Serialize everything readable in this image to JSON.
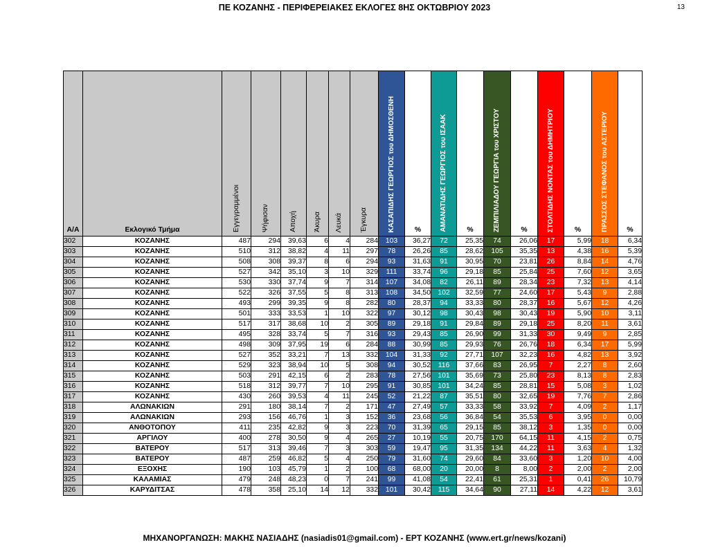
{
  "header": {
    "title": "ΠΕ ΚΟΖΑΝΗΣ - ΠΕΡΙΦΕΡΕΙΑΚΕΣ ΕΚΛΟΓΕΣ 8ΗΣ ΟΚΤΩΒΡΙΟΥ 2023",
    "page_number": "13"
  },
  "table": {
    "headers": {
      "aa": "Α/Α",
      "tmima": "Εκλογικό Τμήμα",
      "eggegrammenoi": "Εγγεγραμμένοι",
      "psifisan": "Ψήφισαν",
      "apoxi": "Αποχή",
      "akyra": "Άκυρα",
      "leyka": "Λευκά",
      "egkyra": "Έγκυρα",
      "c1": "ΚΑΣΑΠΙΔΗΣ ΓΕΩΡΓΙΟΣ του ΔΗΜΟΣΘΕΝΗ",
      "c2": "ΑΜΑΝΑΤΙΔΗΣ ΓΕΩΡΓΙΟΣ του ΙΣΑΑΚ",
      "c3": "ΖΕΜΠΙΛΙΑΔΟΥ ΓΕΩΡΓΙΑ του ΧΡΙΣΤΟΥ",
      "c4": "ΣΤΟΛΤΙΔΗΣ ΝΟΝΤΑΣ του ΔΗΜΗΤΡΙΟΥ",
      "c5": "ΠΡΑΣΣΟΣ ΣΤΕΦΑΝΟΣ του ΑΣΤΕΡΙΟΥ",
      "pct": "%"
    },
    "colors": {
      "gray": "#c9c9c9",
      "c1": "#2f5597",
      "c2": "#0e9a95",
      "c3": "#375623",
      "c4": "#ff0000",
      "c5": "#ff6a00"
    },
    "rows": [
      [
        "302",
        "ΚΟΖΑΝΗΣ",
        "487",
        "294",
        "39,63",
        "6",
        "4",
        "284",
        "103",
        "36,27",
        "72",
        "25,35",
        "74",
        "26,06",
        "17",
        "5,99",
        "18",
        "6,34"
      ],
      [
        "303",
        "ΚΟΖΑΝΗΣ",
        "510",
        "312",
        "38,82",
        "4",
        "11",
        "297",
        "78",
        "26,26",
        "85",
        "28,62",
        "105",
        "35,35",
        "13",
        "4,38",
        "16",
        "5,39"
      ],
      [
        "304",
        "ΚΟΖΑΝΗΣ",
        "508",
        "308",
        "39,37",
        "8",
        "6",
        "294",
        "93",
        "31,63",
        "91",
        "30,95",
        "70",
        "23,81",
        "26",
        "8,84",
        "14",
        "4,76"
      ],
      [
        "305",
        "ΚΟΖΑΝΗΣ",
        "527",
        "342",
        "35,10",
        "3",
        "10",
        "329",
        "111",
        "33,74",
        "96",
        "29,18",
        "85",
        "25,84",
        "25",
        "7,60",
        "12",
        "3,65"
      ],
      [
        "306",
        "ΚΟΖΑΝΗΣ",
        "530",
        "330",
        "37,74",
        "9",
        "7",
        "314",
        "107",
        "34,08",
        "82",
        "26,11",
        "89",
        "28,34",
        "23",
        "7,32",
        "13",
        "4,14"
      ],
      [
        "307",
        "ΚΟΖΑΝΗΣ",
        "522",
        "326",
        "37,55",
        "5",
        "8",
        "313",
        "108",
        "34,50",
        "102",
        "32,59",
        "77",
        "24,60",
        "17",
        "5,43",
        "9",
        "2,88"
      ],
      [
        "308",
        "ΚΟΖΑΝΗΣ",
        "493",
        "299",
        "39,35",
        "9",
        "8",
        "282",
        "80",
        "28,37",
        "94",
        "33,33",
        "80",
        "28,37",
        "16",
        "5,67",
        "12",
        "4,26"
      ],
      [
        "309",
        "ΚΟΖΑΝΗΣ",
        "501",
        "333",
        "33,53",
        "1",
        "10",
        "322",
        "97",
        "30,12",
        "98",
        "30,43",
        "98",
        "30,43",
        "19",
        "5,90",
        "10",
        "3,11"
      ],
      [
        "310",
        "ΚΟΖΑΝΗΣ",
        "517",
        "317",
        "38,68",
        "10",
        "2",
        "305",
        "89",
        "29,18",
        "91",
        "29,84",
        "89",
        "29,18",
        "25",
        "8,20",
        "11",
        "3,61"
      ],
      [
        "311",
        "ΚΟΖΑΝΗΣ",
        "495",
        "328",
        "33,74",
        "5",
        "7",
        "316",
        "93",
        "29,43",
        "85",
        "26,90",
        "99",
        "31,33",
        "30",
        "9,49",
        "9",
        "2,85"
      ],
      [
        "312",
        "ΚΟΖΑΝΗΣ",
        "498",
        "309",
        "37,95",
        "19",
        "6",
        "284",
        "88",
        "30,99",
        "85",
        "29,93",
        "76",
        "26,76",
        "18",
        "6,34",
        "17",
        "5,99"
      ],
      [
        "313",
        "ΚΟΖΑΝΗΣ",
        "527",
        "352",
        "33,21",
        "7",
        "13",
        "332",
        "104",
        "31,33",
        "92",
        "27,71",
        "107",
        "32,23",
        "16",
        "4,82",
        "13",
        "3,92"
      ],
      [
        "314",
        "ΚΟΖΑΝΗΣ",
        "529",
        "323",
        "38,94",
        "10",
        "5",
        "308",
        "94",
        "30,52",
        "116",
        "37,66",
        "83",
        "26,95",
        "7",
        "2,27",
        "8",
        "2,60"
      ],
      [
        "315",
        "ΚΟΖΑΝΗΣ",
        "503",
        "291",
        "42,15",
        "6",
        "2",
        "283",
        "78",
        "27,56",
        "101",
        "35,69",
        "73",
        "25,80",
        "23",
        "8,13",
        "8",
        "2,83"
      ],
      [
        "316",
        "ΚΟΖΑΝΗΣ",
        "518",
        "312",
        "39,77",
        "7",
        "10",
        "295",
        "91",
        "30,85",
        "101",
        "34,24",
        "85",
        "28,81",
        "15",
        "5,08",
        "3",
        "1,02"
      ],
      [
        "317",
        "ΚΟΖΑΝΗΣ",
        "430",
        "260",
        "39,53",
        "4",
        "11",
        "245",
        "52",
        "21,22",
        "87",
        "35,51",
        "80",
        "32,65",
        "19",
        "7,76",
        "7",
        "2,86"
      ],
      [
        "318",
        "ΑΛΩΝΑΚΙΩΝ",
        "291",
        "180",
        "38,14",
        "7",
        "2",
        "171",
        "47",
        "27,49",
        "57",
        "33,33",
        "58",
        "33,92",
        "7",
        "4,09",
        "2",
        "1,17"
      ],
      [
        "319",
        "ΑΛΩΝΑΚΙΩΝ",
        "293",
        "156",
        "46,76",
        "1",
        "3",
        "152",
        "36",
        "23,68",
        "56",
        "36,84",
        "54",
        "35,53",
        "6",
        "3,95",
        "0",
        "0,00"
      ],
      [
        "320",
        "ΑΝΘΟΤΟΠΟΥ",
        "411",
        "235",
        "42,82",
        "9",
        "3",
        "223",
        "70",
        "31,39",
        "65",
        "29,15",
        "85",
        "38,12",
        "3",
        "1,35",
        "0",
        "0,00"
      ],
      [
        "321",
        "ΑΡΓΙΛΟΥ",
        "400",
        "278",
        "30,50",
        "9",
        "4",
        "265",
        "27",
        "10,19",
        "55",
        "20,75",
        "170",
        "64,15",
        "11",
        "4,15",
        "2",
        "0,75"
      ],
      [
        "322",
        "ΒΑΤΕΡΟΥ",
        "517",
        "313",
        "39,46",
        "7",
        "3",
        "303",
        "59",
        "19,47",
        "95",
        "31,35",
        "134",
        "44,22",
        "11",
        "3,63",
        "4",
        "1,32"
      ],
      [
        "323",
        "ΒΑΤΕΡΟΥ",
        "487",
        "259",
        "46,82",
        "5",
        "4",
        "250",
        "79",
        "31,60",
        "74",
        "29,60",
        "84",
        "33,60",
        "3",
        "1,20",
        "10",
        "4,00"
      ],
      [
        "324",
        "ΕΞΟΧΗΣ",
        "190",
        "103",
        "45,79",
        "1",
        "2",
        "100",
        "68",
        "68,00",
        "20",
        "20,00",
        "8",
        "8,00",
        "2",
        "2,00",
        "2",
        "2,00"
      ],
      [
        "325",
        "ΚΑΛΑΜΙΑΣ",
        "479",
        "248",
        "48,23",
        "0",
        "7",
        "241",
        "99",
        "41,08",
        "54",
        "22,41",
        "61",
        "25,31",
        "1",
        "0,41",
        "26",
        "10,79"
      ],
      [
        "326",
        "ΚΑΡΥΔΙΤΣΑΣ",
        "478",
        "358",
        "25,10",
        "14",
        "12",
        "332",
        "101",
        "30,42",
        "115",
        "34,64",
        "90",
        "27,11",
        "14",
        "4,22",
        "12",
        "3,61"
      ]
    ]
  },
  "footer": {
    "text": "ΜΗΧΑΝΟΡΓΑΝΩΣΗ: ΜΑΚΗΣ ΝΑΣΙΑΔΗΣ (nasiadis01@gmail.com) - ΕΡΤ ΚΟΖΑΝΗΣ (www.ert.gr/news/kozani)"
  }
}
